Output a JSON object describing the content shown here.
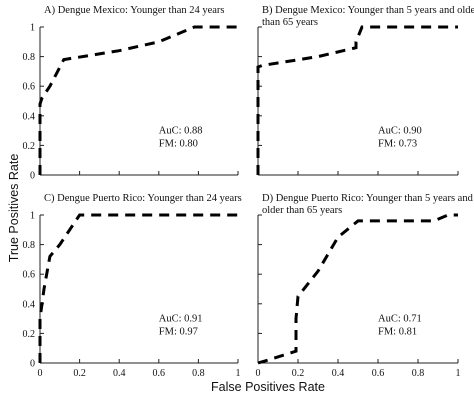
{
  "axes": {
    "y_title": "True Positives Rate",
    "x_title": "False Positives Rate"
  },
  "chart_data": [
    {
      "type": "line",
      "title": "A) Dengue Mexico: Younger than 24 years",
      "xlabel": "False Positives Rate",
      "ylabel": "True Positives Rate",
      "xlim": [
        0,
        1
      ],
      "ylim": [
        0,
        1
      ],
      "x_ticks": [
        "0",
        "0.2",
        "0.4",
        "0.6",
        "0.8",
        "1"
      ],
      "y_ticks": [
        "0",
        "0.2",
        "0.4",
        "0.6",
        "0.8",
        "1"
      ],
      "series": [
        {
          "x": [
            0,
            0,
            0.01,
            0.05,
            0.12,
            0.4,
            0.6,
            0.78,
            0.85,
            1
          ],
          "y": [
            0,
            0.48,
            0.52,
            0.6,
            0.78,
            0.84,
            0.9,
            1,
            1,
            1
          ]
        }
      ],
      "auc": "AuC: 0.88",
      "fm": "FM: 0.80"
    },
    {
      "type": "line",
      "title_lines": [
        "B) Dengue Mexico: Younger than 5 years and older",
        "than 65 years"
      ],
      "xlabel": "False Positives Rate",
      "ylabel": "True Positives Rate",
      "xlim": [
        0,
        1
      ],
      "ylim": [
        0,
        1
      ],
      "x_ticks": [
        "0",
        "0.2",
        "0.4",
        "0.6",
        "0.8",
        "1"
      ],
      "y_ticks": [
        "0",
        "0.2",
        "0.4",
        "0.6",
        "0.8",
        "1"
      ],
      "series": [
        {
          "x": [
            0,
            0,
            0.02,
            0.3,
            0.49,
            0.49,
            0.52,
            1
          ],
          "y": [
            0,
            0.73,
            0.74,
            0.8,
            0.86,
            0.9,
            1,
            1
          ]
        }
      ],
      "auc": "AuC: 0.90",
      "fm": "FM: 0.73"
    },
    {
      "type": "line",
      "title": "C) Dengue Puerto Rico: Younger than 24 years",
      "xlabel": "False Positives Rate",
      "ylabel": "True Positives Rate",
      "xlim": [
        0,
        1
      ],
      "ylim": [
        0,
        1
      ],
      "x_ticks": [
        "0",
        "0.2",
        "0.4",
        "0.6",
        "0.8",
        "1"
      ],
      "y_ticks": [
        "0",
        "0.2",
        "0.4",
        "0.6",
        "0.8",
        "1"
      ],
      "series": [
        {
          "x": [
            0,
            0,
            0.02,
            0.05,
            0.1,
            0.2,
            0.3,
            1
          ],
          "y": [
            0,
            0.3,
            0.5,
            0.72,
            0.8,
            1,
            1,
            1
          ]
        }
      ],
      "auc": "AuC: 0.91",
      "fm": "FM: 0.97"
    },
    {
      "type": "line",
      "title_lines": [
        "D) Dengue Puerto Rico: Younger than 5 years and",
        "older than 65 years"
      ],
      "xlabel": "False Positives Rate",
      "ylabel": "True Positives Rate",
      "xlim": [
        0,
        1
      ],
      "ylim": [
        0,
        1
      ],
      "x_ticks": [
        "0",
        "0.2",
        "0.4",
        "0.6",
        "0.8",
        "1"
      ],
      "y_ticks": [
        "0",
        "0.2",
        "0.4",
        "0.6",
        "0.8",
        "1"
      ],
      "series": [
        {
          "x": [
            0,
            0.05,
            0.19,
            0.19,
            0.2,
            0.3,
            0.4,
            0.5,
            0.6,
            0.88,
            0.95,
            1
          ],
          "y": [
            0,
            0.02,
            0.08,
            0.3,
            0.45,
            0.62,
            0.85,
            0.96,
            0.96,
            0.96,
            1,
            1
          ]
        }
      ],
      "auc": "AuC: 0.71",
      "fm": "FM: 0.81"
    }
  ]
}
